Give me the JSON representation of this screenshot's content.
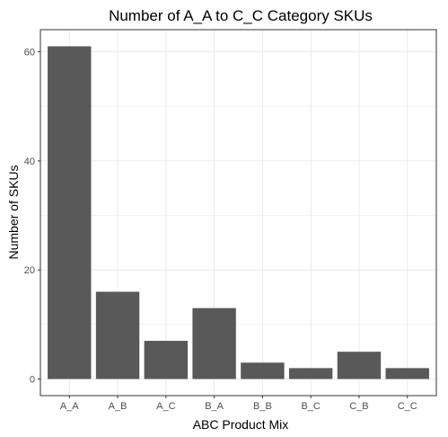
{
  "chart_data": {
    "type": "bar",
    "title": "Number of A_A to C_C Category SKUs",
    "xlabel": "ABC Product Mix",
    "ylabel": "Number of SKUs",
    "categories": [
      "A_A",
      "A_B",
      "A_C",
      "B_A",
      "B_B",
      "B_C",
      "C_B",
      "C_C"
    ],
    "values": [
      61,
      16,
      7,
      13,
      3,
      2,
      5,
      2
    ],
    "ylim": [
      -3.05,
      64.05
    ],
    "yticks": [
      0,
      20,
      40,
      60
    ],
    "ytick_labels": [
      "0",
      "20",
      "40",
      "60"
    ],
    "grid": true,
    "legend": "none",
    "bar_color": "#595959",
    "grid_color": "#ebebeb",
    "panel_border_color": "#333333"
  }
}
